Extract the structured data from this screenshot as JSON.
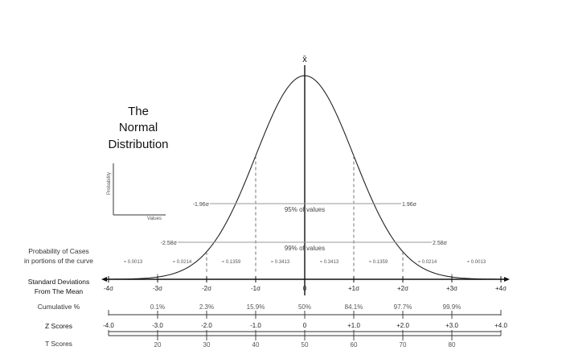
{
  "title": [
    "The",
    "Normal",
    "Distribution"
  ],
  "mean_symbol": "x̄",
  "mini_axes": {
    "y_label": "Probability",
    "x_label": "Values"
  },
  "ci95": {
    "label": "95% of values",
    "left": "-1.96σ",
    "right": "1.96σ"
  },
  "ci99": {
    "label": "99% of values",
    "left": "-2.58σ",
    "right": "2.58σ"
  },
  "prob_row": {
    "label_line1": "Probability of Cases",
    "label_line2": "in portions of the curve",
    "values": [
      "≈ 0.0013",
      "≈ 0.0214",
      "≈ 0.1359",
      "≈ 0.3413",
      "≈ 0.3413",
      "≈ 0.1359",
      "≈ 0.0214",
      "≈ 0.0013"
    ]
  },
  "sd_row": {
    "label_line1": "Standard Deviations",
    "label_line2": "From The Mean",
    "ticks": [
      "-4σ",
      "-3σ",
      "-2σ",
      "-1σ",
      "0",
      "+1σ",
      "+2σ",
      "+3σ",
      "+4σ"
    ]
  },
  "cum_row": {
    "label": "Cumulative %",
    "values": [
      "0.1%",
      "2.3%",
      "15.9%",
      "50%",
      "84.1%",
      "97.7%",
      "99.9%"
    ]
  },
  "z_row": {
    "label": "Z Scores",
    "values": [
      "-4.0",
      "-3.0",
      "-2.0",
      "-1.0",
      "0",
      "+1.0",
      "+2.0",
      "+3.0",
      "+4.0"
    ]
  },
  "t_row": {
    "label": "T Scores",
    "values": [
      "20",
      "30",
      "40",
      "50",
      "60",
      "70",
      "80"
    ]
  }
}
